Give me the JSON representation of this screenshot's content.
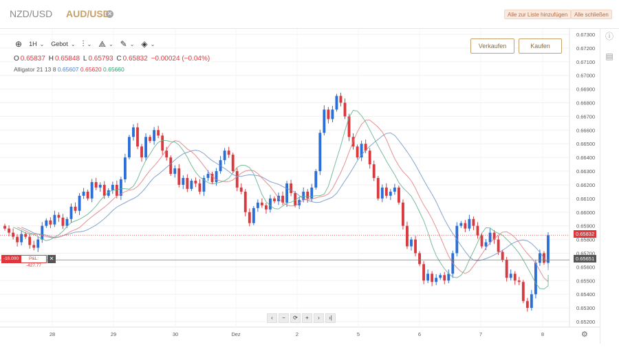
{
  "tabs": [
    {
      "label": "NZD/USD",
      "active": false
    },
    {
      "label": "AUD/USD",
      "active": true,
      "close_icon": "close-circle-icon"
    }
  ],
  "top_actions": {
    "add_all": "Alle zur Liste hinzufügen",
    "close_all": "Alle schließen"
  },
  "toolbar": {
    "interval": "1H",
    "price_type": "Gebot",
    "icons": [
      "crosshair-icon",
      "candlestick-icon",
      "indicators-icon",
      "drawing-pencil-icon",
      "layers-icon"
    ]
  },
  "ohlc": {
    "o_label": "O",
    "o": "0.65837",
    "h_label": "H",
    "h": "0.65848",
    "l_label": "L",
    "l": "0.65793",
    "c_label": "C",
    "c": "0.65832",
    "change": "−0.00024 (−0.04%)"
  },
  "indicator": {
    "label": "Alligator 21 13 8",
    "v1": "0.65607",
    "v2": "0.65620",
    "v3": "0.65660"
  },
  "trade": {
    "sell": "Verkaufen",
    "buy": "Kaufen"
  },
  "position": {
    "qty": "-16.000",
    "pl": "P&L: -427.77",
    "close": "✕"
  },
  "price_tags": {
    "current": "0.65832",
    "position": "0.65651"
  },
  "nav_buttons": [
    "‹",
    "−",
    "⟳",
    "+",
    "›",
    "›|"
  ],
  "colors": {
    "up": "#2b6fd6",
    "down": "#d83a3f",
    "accent": "#c8a168",
    "jaw": "#6f92c8",
    "teeth": "#e17b7e",
    "lips": "#5fb08a"
  },
  "chart_data": {
    "type": "candlestick",
    "y_ticks": [
      "0.67300",
      "0.67200",
      "0.67100",
      "0.67000",
      "0.66900",
      "0.66800",
      "0.66700",
      "0.66600",
      "0.66500",
      "0.66400",
      "0.66300",
      "0.66200",
      "0.66100",
      "0.66000",
      "0.65900",
      "0.65800",
      "0.65700",
      "0.65600",
      "0.65500",
      "0.65400",
      "0.65300",
      "0.65200"
    ],
    "ylim": [
      0.6516,
      0.6734
    ],
    "x_ticks": [
      "28",
      "29",
      "30",
      "Dez",
      "2",
      "5",
      "6",
      "7",
      "8"
    ],
    "close_path": [
      0.6588,
      0.6585,
      0.6582,
      0.6578,
      0.6584,
      0.6582,
      0.6576,
      0.6574,
      0.658,
      0.659,
      0.6594,
      0.6591,
      0.6598,
      0.6596,
      0.659,
      0.6595,
      0.6604,
      0.6601,
      0.6612,
      0.6615,
      0.661,
      0.6622,
      0.6618,
      0.662,
      0.6612,
      0.6616,
      0.662,
      0.6612,
      0.6624,
      0.664,
      0.6655,
      0.6662,
      0.6648,
      0.664,
      0.6655,
      0.6652,
      0.666,
      0.6656,
      0.6645,
      0.664,
      0.6628,
      0.6632,
      0.662,
      0.6625,
      0.6617,
      0.6623,
      0.6621,
      0.6615,
      0.6625,
      0.6628,
      0.6622,
      0.663,
      0.6638,
      0.6645,
      0.6642,
      0.663,
      0.6618,
      0.6615,
      0.66,
      0.6592,
      0.6603,
      0.6607,
      0.6605,
      0.6602,
      0.661,
      0.6608,
      0.6612,
      0.6607,
      0.6621,
      0.6614,
      0.6605,
      0.6609,
      0.6615,
      0.661,
      0.6618,
      0.663,
      0.6658,
      0.6675,
      0.6668,
      0.6675,
      0.6685,
      0.668,
      0.667,
      0.6655,
      0.6648,
      0.664,
      0.665,
      0.6645,
      0.6635,
      0.6625,
      0.661,
      0.6618,
      0.6612,
      0.6615,
      0.6618,
      0.6607,
      0.659,
      0.6575,
      0.658,
      0.657,
      0.6562,
      0.655,
      0.6555,
      0.6549,
      0.6552,
      0.6554,
      0.655,
      0.6555,
      0.657,
      0.659,
      0.6592,
      0.6588,
      0.6595,
      0.659,
      0.6583,
      0.6575,
      0.6578,
      0.6585,
      0.658,
      0.6571,
      0.6565,
      0.6552,
      0.6555,
      0.655,
      0.6549,
      0.6535,
      0.653,
      0.654,
      0.6563,
      0.657,
      0.6563,
      0.6583
    ]
  }
}
